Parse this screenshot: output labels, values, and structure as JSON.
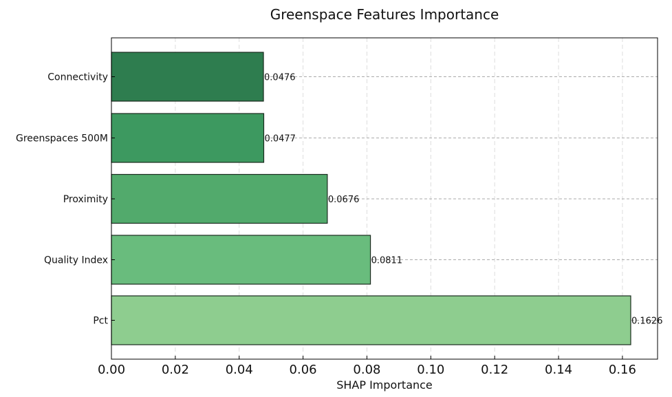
{
  "chart_data": {
    "type": "bar",
    "orientation": "horizontal",
    "title": "Greenspace Features Importance",
    "xlabel": "SHAP Importance",
    "ylabel": "",
    "categories": [
      "Connectivity",
      "Greenspaces 500M",
      "Proximity",
      "Quality Index",
      "Pct"
    ],
    "values": [
      0.0476,
      0.0477,
      0.0676,
      0.0811,
      0.1626
    ],
    "data_labels": [
      "0.0476",
      "0.0477",
      "0.0676",
      "0.0811",
      "0.1626"
    ],
    "bar_colors": [
      "#2e7d4f",
      "#3d9960",
      "#52aa6c",
      "#69bc7d",
      "#8ecd8f"
    ],
    "edge_color": "#1a2a1e",
    "xlim": [
      0,
      0.171
    ],
    "xticks": [
      0.0,
      0.02,
      0.04,
      0.06,
      0.08,
      0.1,
      0.12,
      0.14,
      0.16
    ],
    "xtick_labels": [
      "0.00",
      "0.02",
      "0.04",
      "0.06",
      "0.08",
      "0.10",
      "0.12",
      "0.14",
      "0.16"
    ],
    "grid": true,
    "legend": "none"
  }
}
